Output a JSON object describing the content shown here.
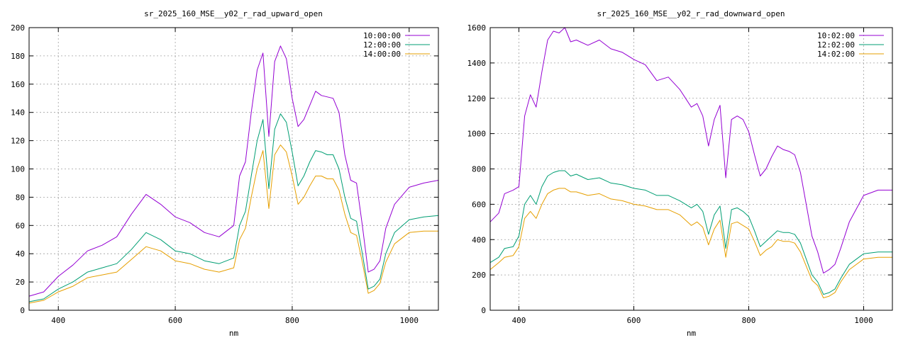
{
  "chart_data": [
    {
      "type": "line",
      "title": "sr_2025_160_MSE__y02_r_rad_upward_open",
      "xlabel": "nm",
      "ylabel": "",
      "xlim": [
        350,
        1050
      ],
      "ylim": [
        0,
        200
      ],
      "xticks": [
        400,
        600,
        800,
        1000
      ],
      "yticks": [
        0,
        20,
        40,
        60,
        80,
        100,
        120,
        140,
        160,
        180,
        200
      ],
      "grid": true,
      "legend_position": "top-right",
      "x": [
        350,
        375,
        400,
        425,
        450,
        475,
        500,
        525,
        550,
        575,
        600,
        625,
        650,
        675,
        700,
        710,
        720,
        730,
        740,
        750,
        760,
        770,
        780,
        790,
        800,
        810,
        820,
        830,
        840,
        850,
        860,
        870,
        880,
        890,
        900,
        910,
        920,
        930,
        940,
        950,
        960,
        975,
        1000,
        1025,
        1050
      ],
      "series": [
        {
          "name": "10:00:00",
          "color": "#9400d3",
          "values": [
            10,
            13,
            24,
            32,
            42,
            46,
            52,
            68,
            82,
            75,
            66,
            62,
            55,
            52,
            60,
            95,
            105,
            140,
            170,
            182,
            123,
            176,
            187,
            178,
            150,
            130,
            135,
            145,
            155,
            152,
            151,
            150,
            140,
            110,
            92,
            90,
            60,
            27,
            29,
            35,
            58,
            75,
            87,
            90,
            92
          ]
        },
        {
          "name": "12:00:00",
          "color": "#009e73",
          "values": [
            6,
            8,
            15,
            20,
            27,
            30,
            33,
            43,
            55,
            50,
            42,
            40,
            35,
            33,
            37,
            60,
            70,
            95,
            120,
            135,
            86,
            128,
            139,
            133,
            112,
            88,
            95,
            105,
            113,
            112,
            110,
            110,
            100,
            80,
            65,
            63,
            40,
            15,
            17,
            22,
            40,
            55,
            64,
            66,
            67
          ]
        },
        {
          "name": "14:00:00",
          "color": "#e69f00",
          "values": [
            5,
            7,
            13,
            17,
            23,
            25,
            27,
            36,
            45,
            42,
            35,
            33,
            29,
            27,
            30,
            50,
            58,
            80,
            100,
            113,
            72,
            110,
            117,
            112,
            95,
            75,
            80,
            88,
            95,
            95,
            93,
            93,
            85,
            68,
            55,
            53,
            34,
            12,
            14,
            19,
            34,
            47,
            55,
            56,
            56
          ]
        }
      ]
    },
    {
      "type": "line",
      "title": "sr_2025_160_MSE__y02_r_rad_downward_open",
      "xlabel": "nm",
      "ylabel": "",
      "xlim": [
        350,
        1050
      ],
      "ylim": [
        0,
        1600
      ],
      "xticks": [
        400,
        600,
        800,
        1000
      ],
      "yticks": [
        0,
        200,
        400,
        600,
        800,
        1000,
        1200,
        1400,
        1600
      ],
      "grid": true,
      "legend_position": "top-right",
      "x": [
        350,
        365,
        375,
        390,
        400,
        410,
        420,
        430,
        440,
        450,
        460,
        470,
        480,
        490,
        500,
        520,
        540,
        560,
        580,
        600,
        620,
        640,
        660,
        680,
        700,
        710,
        720,
        730,
        740,
        750,
        760,
        770,
        780,
        790,
        800,
        810,
        820,
        830,
        840,
        850,
        860,
        870,
        880,
        890,
        900,
        910,
        920,
        930,
        940,
        950,
        960,
        975,
        1000,
        1025,
        1050
      ],
      "series": [
        {
          "name": "10:02:00",
          "color": "#9400d3",
          "values": [
            500,
            550,
            660,
            680,
            700,
            1100,
            1220,
            1150,
            1350,
            1530,
            1580,
            1570,
            1600,
            1520,
            1530,
            1500,
            1530,
            1480,
            1460,
            1420,
            1390,
            1300,
            1320,
            1250,
            1150,
            1170,
            1100,
            930,
            1080,
            1160,
            750,
            1080,
            1100,
            1080,
            1010,
            880,
            760,
            800,
            870,
            930,
            910,
            900,
            880,
            780,
            600,
            420,
            330,
            210,
            230,
            260,
            350,
            500,
            650,
            680,
            680
          ]
        },
        {
          "name": "12:02:00",
          "color": "#009e73",
          "values": [
            270,
            300,
            350,
            360,
            420,
            600,
            650,
            600,
            700,
            760,
            780,
            790,
            790,
            760,
            770,
            740,
            750,
            720,
            710,
            690,
            680,
            650,
            650,
            620,
            580,
            600,
            560,
            430,
            540,
            590,
            350,
            570,
            580,
            560,
            530,
            450,
            360,
            390,
            420,
            450,
            440,
            440,
            430,
            380,
            290,
            200,
            160,
            90,
            100,
            120,
            180,
            260,
            320,
            330,
            330
          ]
        },
        {
          "name": "14:02:00",
          "color": "#e69f00",
          "values": [
            230,
            270,
            300,
            310,
            360,
            520,
            560,
            520,
            600,
            660,
            680,
            690,
            690,
            670,
            670,
            650,
            660,
            630,
            620,
            600,
            590,
            570,
            570,
            540,
            480,
            500,
            470,
            370,
            460,
            510,
            300,
            490,
            500,
            480,
            460,
            390,
            310,
            340,
            360,
            400,
            390,
            390,
            380,
            330,
            250,
            170,
            140,
            70,
            80,
            100,
            160,
            230,
            290,
            300,
            300
          ]
        }
      ]
    }
  ]
}
